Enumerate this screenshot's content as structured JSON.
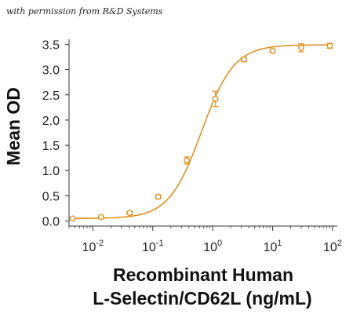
{
  "credit": "with permission from R&D Systems",
  "chart_data": {
    "type": "scatter",
    "title": "",
    "ylabel": "Mean OD",
    "xlabel_lines": [
      "Recombinant Human",
      "L-Selectin/CD62L (ng/mL)"
    ],
    "x_scale": "log",
    "xlim": [
      0.004,
      120
    ],
    "ylim": [
      -0.1,
      3.6
    ],
    "x_ticks": [
      {
        "value": 0.01,
        "base": "10",
        "exp": "-2"
      },
      {
        "value": 0.1,
        "base": "10",
        "exp": "-1"
      },
      {
        "value": 1,
        "base": "10",
        "exp": "0"
      },
      {
        "value": 10,
        "base": "10",
        "exp": "1"
      },
      {
        "value": 100,
        "base": "10",
        "exp": "2"
      }
    ],
    "y_ticks": [
      "0.0",
      "0.5",
      "1.0",
      "1.5",
      "2.0",
      "2.5",
      "3.0",
      "3.5"
    ],
    "y_tick_values": [
      0,
      0.5,
      1,
      1.5,
      2,
      2.5,
      3,
      3.5
    ],
    "color": "#E09020",
    "series": [
      {
        "x": [
          0.0046,
          0.0137,
          0.0412,
          0.123,
          0.37,
          1.11,
          3.33,
          10,
          30,
          90
        ],
        "y": [
          0.05,
          0.08,
          0.16,
          0.48,
          1.2,
          2.42,
          3.2,
          3.37,
          3.43,
          3.47
        ],
        "error": [
          0.02,
          0.02,
          0.03,
          0.04,
          0.07,
          0.15,
          0.04,
          0.03,
          0.08,
          0.05
        ]
      }
    ],
    "fit": {
      "bottom": 0.05,
      "top": 3.49,
      "ec50": 0.65,
      "hill": 1.6
    }
  }
}
